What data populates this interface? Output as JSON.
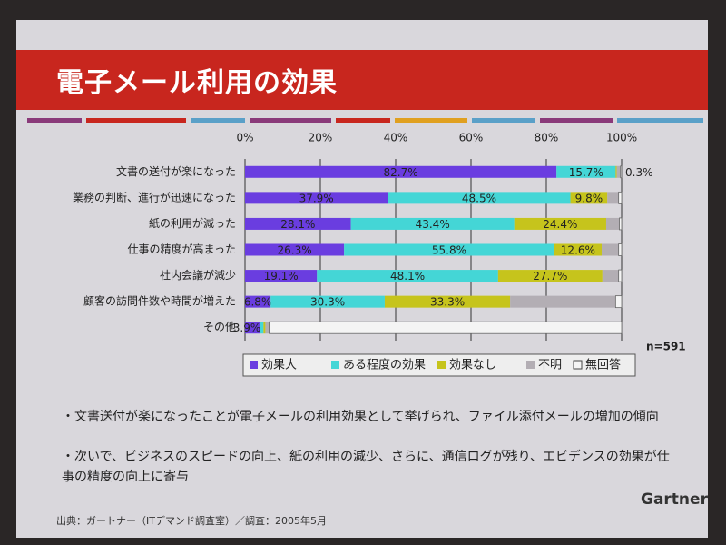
{
  "chart_data": {
    "type": "bar",
    "orientation": "horizontal",
    "stacked": true,
    "title": "電子メール利用の効果",
    "categories": [
      "文書の送付が楽になった",
      "業務の判断、進行が迅速になった",
      "紙の利用が減った",
      "仕事の精度が高まった",
      "社内会議が減少",
      "顧客の訪問件数や時間が増えた",
      "その他"
    ],
    "series": [
      {
        "name": "効果大",
        "color": "#6a3de0",
        "values": [
          82.7,
          37.9,
          28.1,
          26.3,
          19.1,
          6.8,
          3.9
        ],
        "value_labels": [
          "82.7%",
          "37.9%",
          "28.1%",
          "26.3%",
          "19.1%",
          "6.8%",
          "3.9%"
        ]
      },
      {
        "name": "ある程度の効果",
        "color": "#44d6d6",
        "values": [
          15.7,
          48.5,
          43.4,
          55.8,
          48.1,
          30.3,
          1.0
        ],
        "value_labels": [
          "15.7%",
          "48.5%",
          "43.4%",
          "55.8%",
          "48.1%",
          "30.3%",
          null
        ]
      },
      {
        "name": "効果なし",
        "color": "#c6c41c",
        "values": [
          0.3,
          9.8,
          24.4,
          12.6,
          27.7,
          33.3,
          0.5
        ],
        "value_labels": [
          "0.3%",
          "9.8%",
          "24.4%",
          "12.6%",
          "27.7%",
          "33.3%",
          null
        ]
      },
      {
        "name": "不明",
        "color": "#b3aeb4",
        "values": [
          1.0,
          3.0,
          3.5,
          4.5,
          4.3,
          28.0,
          1.0
        ],
        "value_labels": [
          null,
          null,
          null,
          null,
          null,
          null,
          null
        ]
      },
      {
        "name": "無回答",
        "color": "#f4f4f4",
        "values": [
          0.3,
          0.8,
          0.6,
          0.8,
          0.8,
          1.6,
          93.6
        ],
        "value_labels": [
          null,
          null,
          null,
          null,
          null,
          null,
          null
        ]
      }
    ],
    "xlim": [
      0,
      100
    ],
    "xticks": [
      {
        "value": 0,
        "label": "0%"
      },
      {
        "value": 20,
        "label": "20%"
      },
      {
        "value": 40,
        "label": "40%"
      },
      {
        "value": 60,
        "label": "60%"
      },
      {
        "value": 80,
        "label": "80%"
      },
      {
        "value": 100,
        "label": "100%"
      }
    ],
    "grid": true,
    "legend": "bottom",
    "annotation": "n=591"
  },
  "bullets": [
    "・文書送付が楽になったことが電子メールの利用効果として挙げられ、ファイル添付メールの増加の傾向",
    "・次いで、ビジネスのスピードの向上、紙の利用の減少、さらに、通信ログが残り、エビデンスの効果が仕事の精度の向上に寄与"
  ],
  "footer": "出典：ガートナー（ITデマンド調査室）／調査：2005年5月",
  "logo": "Gartner"
}
